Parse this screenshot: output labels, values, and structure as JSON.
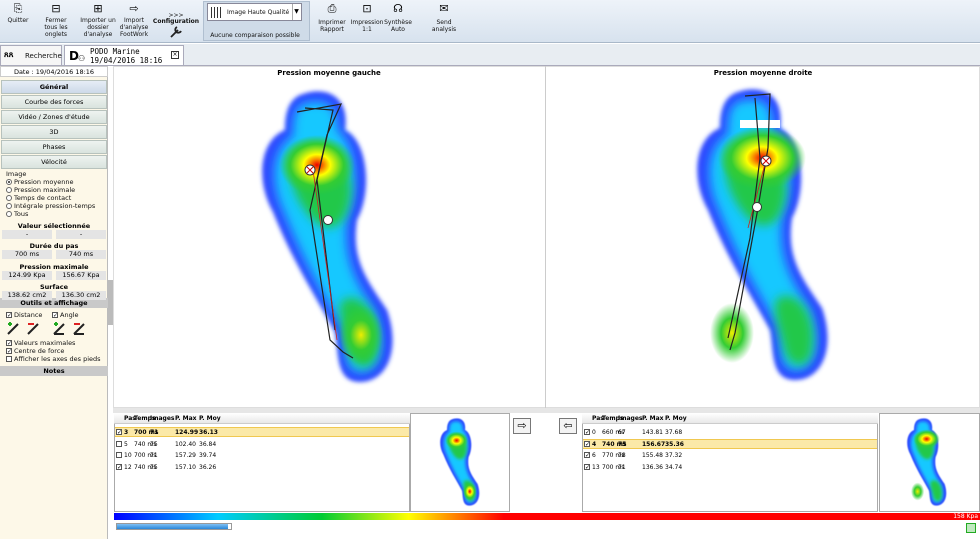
{
  "toolbar": {
    "buttons": [
      "Quitter",
      "Fermer tous les onglets",
      "Importer un dossier d'analyse",
      "Import d'analyse FootWork"
    ],
    "config_arrows": ">>>",
    "config": "Configuration",
    "quality": "Image Haute Qualité",
    "comparison": "Aucune comparaison possible",
    "buttons2": [
      "Imprimer Rapport",
      "Impression 1:1",
      "Synthèse Auto",
      "Send analysis"
    ]
  },
  "tabs": {
    "search": "Recherche",
    "patient": "PODO Marine",
    "date": "19/04/2016 18:16"
  },
  "left": {
    "date": "Date : 19/04/2016 18:16",
    "menu": [
      "Général",
      "Courbe des forces",
      "Vidéo / Zones d'étude",
      "3D",
      "Phases",
      "Vélocité"
    ],
    "image_title": "Image",
    "radios": [
      {
        "label": "Pression moyenne",
        "checked": true
      },
      {
        "label": "Pression maximale",
        "checked": false
      },
      {
        "label": "Temps de contact",
        "checked": false
      },
      {
        "label": "Intégrale pression-temps",
        "checked": false
      },
      {
        "label": "Tous",
        "checked": false
      }
    ],
    "stats": [
      {
        "title": "Valeur sélectionnée",
        "values": [
          "-",
          "-"
        ]
      },
      {
        "title": "Durée du pas",
        "values": [
          "700 ms",
          "740 ms"
        ]
      },
      {
        "title": "Pression maximale",
        "values": [
          "124.99 Kpa",
          "156.67 Kpa"
        ]
      },
      {
        "title": "Surface",
        "values": [
          "138.62 cm2",
          "136.30 cm2"
        ]
      }
    ],
    "tools_title": "Outils et affichage",
    "tools_top": [
      {
        "label": "Distance",
        "checked": true
      },
      {
        "label": "Angle",
        "checked": true
      }
    ],
    "tools": [
      {
        "label": "Valeurs maximales",
        "checked": true
      },
      {
        "label": "Centre de force",
        "checked": true
      },
      {
        "label": "Afficher les axes des pieds",
        "checked": false
      }
    ],
    "notes": "Notes"
  },
  "views": [
    {
      "title": "Pression moyenne gauche"
    },
    {
      "title": "Pression moyenne droite"
    }
  ],
  "tables": [
    {
      "headers": [
        "Pas",
        "Temps",
        "Images",
        "P. Max",
        "P. Moy"
      ],
      "rows": [
        {
          "checked": true,
          "selected": true,
          "cells": [
            "3",
            "700 ms",
            "71",
            "124.99",
            "36.13"
          ]
        },
        {
          "checked": false,
          "selected": false,
          "cells": [
            "5",
            "740 ms",
            "75",
            "102.40",
            "36.84"
          ]
        },
        {
          "checked": false,
          "selected": false,
          "cells": [
            "10",
            "700 ms",
            "71",
            "157.29",
            "39.74"
          ]
        },
        {
          "checked": true,
          "selected": false,
          "cells": [
            "12",
            "740 ms",
            "75",
            "157.10",
            "36.26"
          ]
        }
      ]
    },
    {
      "headers": [
        "Pas",
        "Temps",
        "Images",
        "P. Max",
        "P. Moy"
      ],
      "rows": [
        {
          "checked": true,
          "selected": false,
          "cells": [
            "0",
            "660 ms",
            "67",
            "143.81",
            "37.68"
          ]
        },
        {
          "checked": true,
          "selected": true,
          "cells": [
            "4",
            "740 ms",
            "75",
            "156.67",
            "35.36"
          ]
        },
        {
          "checked": true,
          "selected": false,
          "cells": [
            "6",
            "770 ms",
            "78",
            "155.48",
            "37.32"
          ]
        },
        {
          "checked": true,
          "selected": false,
          "cells": [
            "13",
            "700 ms",
            "71",
            "136.36",
            "34.74"
          ]
        }
      ]
    }
  ],
  "scale_label": "158 Kpa"
}
